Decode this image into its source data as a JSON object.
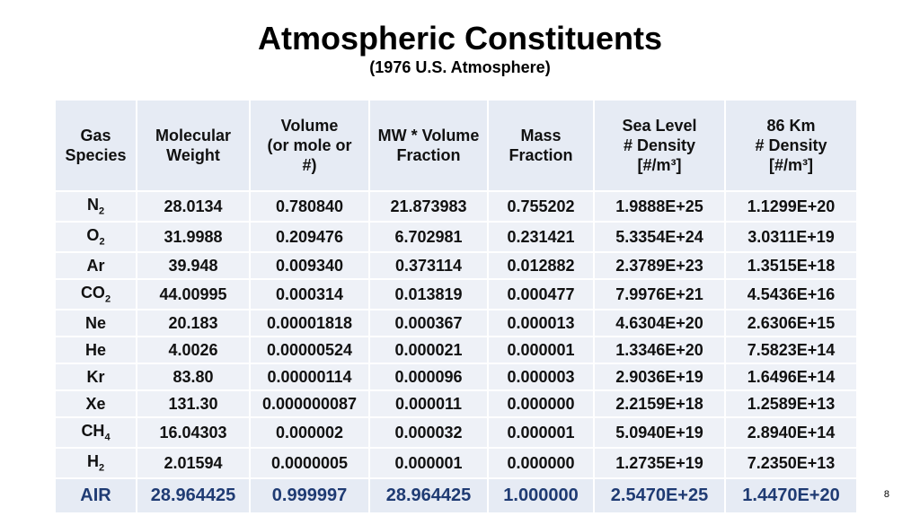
{
  "header": {
    "title": "Atmospheric Constituents",
    "subtitle": "(1976 U.S. Atmosphere)"
  },
  "table": {
    "columns": [
      [
        "Gas",
        "Species"
      ],
      [
        "Molecular",
        "Weight"
      ],
      [
        "Volume",
        "(or mole or",
        "#)"
      ],
      [
        "MW * Volume",
        "Fraction"
      ],
      [
        "Mass",
        "Fraction"
      ],
      [
        "Sea Level",
        "# Density",
        "[#/m³]"
      ],
      [
        "86 Km",
        "# Density",
        "[#/m³]"
      ]
    ],
    "rows": [
      [
        {
          "text": "N",
          "sub": "2"
        },
        "28.0134",
        "0.780840",
        "21.873983",
        "0.755202",
        "1.9888E+25",
        "1.1299E+20"
      ],
      [
        {
          "text": "O",
          "sub": "2"
        },
        "31.9988",
        "0.209476",
        "6.702981",
        "0.231421",
        "5.3354E+24",
        "3.0311E+19"
      ],
      [
        {
          "text": "Ar"
        },
        "39.948",
        "0.009340",
        "0.373114",
        "0.012882",
        "2.3789E+23",
        "1.3515E+18"
      ],
      [
        {
          "text": "CO",
          "sub": "2"
        },
        "44.00995",
        "0.000314",
        "0.013819",
        "0.000477",
        "7.9976E+21",
        "4.5436E+16"
      ],
      [
        {
          "text": "Ne"
        },
        "20.183",
        "0.00001818",
        "0.000367",
        "0.000013",
        "4.6304E+20",
        "2.6306E+15"
      ],
      [
        {
          "text": "He"
        },
        "4.0026",
        "0.00000524",
        "0.000021",
        "0.000001",
        "1.3346E+20",
        "7.5823E+14"
      ],
      [
        {
          "text": "Kr"
        },
        "83.80",
        "0.00000114",
        "0.000096",
        "0.000003",
        "2.9036E+19",
        "1.6496E+14"
      ],
      [
        {
          "text": "Xe"
        },
        "131.30",
        "0.000000087",
        "0.000011",
        "0.000000",
        "2.2159E+18",
        "1.2589E+13"
      ],
      [
        {
          "text": "CH",
          "sub": "4"
        },
        "16.04303",
        "0.000002",
        "0.000032",
        "0.000001",
        "5.0940E+19",
        "2.8940E+14"
      ],
      [
        {
          "text": "H",
          "sub": "2"
        },
        "2.01594",
        "0.0000005",
        "0.000001",
        "0.000000",
        "1.2735E+19",
        "7.2350E+13"
      ]
    ],
    "total": [
      {
        "text": "AIR"
      },
      "28.964425",
      "0.999997",
      "28.964425",
      "1.000000",
      "2.5470E+25",
      "1.4470E+20"
    ]
  },
  "page_number": "8"
}
